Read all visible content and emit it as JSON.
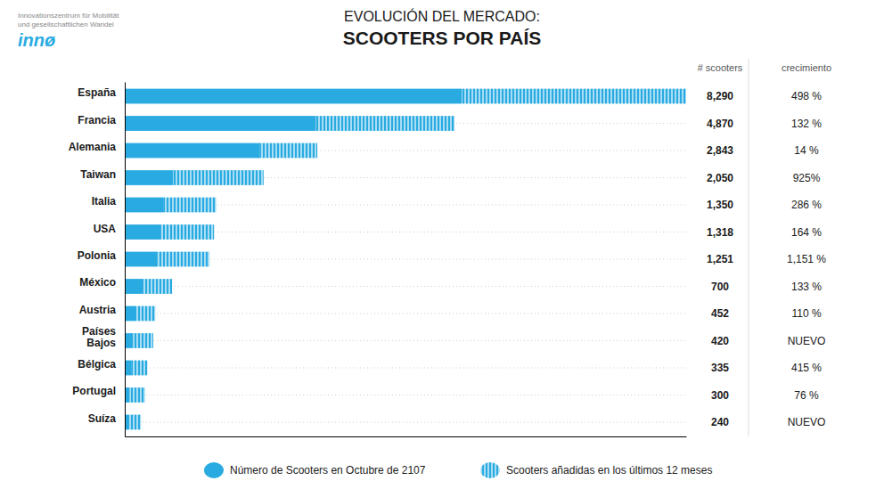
{
  "chart_data": {
    "type": "bar",
    "orientation": "horizontal",
    "stacked": true,
    "subtitle": "EVOLUCIÓN DEL MERCADO:",
    "title": "SCOOTERS POR PAÍS",
    "categories": [
      "España",
      "Francia",
      "Alemania",
      "Taiwan",
      "Italia",
      "USA",
      "Polonia",
      "México",
      "Austria",
      "Países\nBajos",
      "Bélgica",
      "Portugal",
      "Suíza"
    ],
    "series": [
      {
        "name": "Número de Scooters en Octubre de 2107",
        "color": "#29ABE2",
        "values": [
          4974,
          2824.6,
          1990.1,
          717.5,
          567,
          527.2,
          475.38,
          280,
          171.76,
          126,
          93.8,
          75,
          52.8
        ]
      },
      {
        "name": "Scooters añadidas en los últimos 12 meses",
        "color": "#29ABE2",
        "values": [
          3316,
          2045.4,
          852.9,
          1332.5,
          783,
          790.8,
          775.62,
          420,
          280.24,
          294,
          241.2,
          225,
          187.2
        ]
      }
    ],
    "totals": [
      8290,
      4870,
      2843,
      2050,
      1350,
      1318,
      1251,
      700,
      452,
      420,
      335,
      300,
      240
    ],
    "total_labels": [
      "8,290",
      "4,870",
      "2,843",
      "2,050",
      "1,350",
      "1,318",
      "1,251",
      "700",
      "452",
      "420",
      "335",
      "300",
      "240"
    ],
    "total_header": "# scooters",
    "growth_header": "crecimiento",
    "growth_labels": [
      "498 %",
      "132 %",
      "14 %",
      "925%",
      "286 %",
      "164 %",
      "1,151 %",
      "133 %",
      "110 %",
      "NUEVO",
      "415 %",
      "76 %",
      "NUEVO"
    ],
    "annotations": [
      "innø",
      "Innovationszentrum für Mobilität\nund gesellschaftlichen Wandel"
    ],
    "xlim": [
      0,
      8290
    ],
    "xticks": [],
    "tick_labels": "y",
    "grid": false,
    "legend": "bottom"
  }
}
